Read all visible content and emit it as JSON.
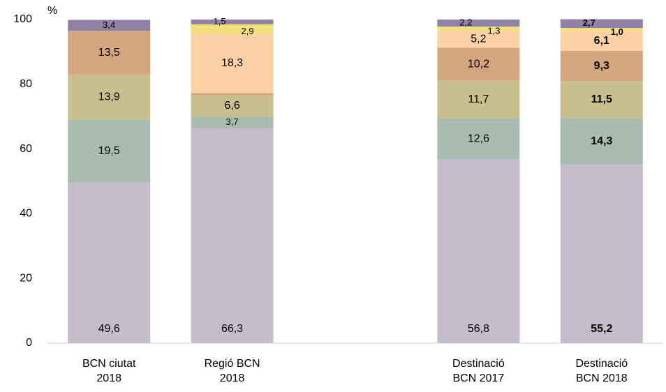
{
  "chart_data": {
    "type": "stacked_bar",
    "y_label": "%",
    "categories": [
      "BCN ciutat\n2018",
      "Regió BCN\n2018",
      null,
      "Destinació\nBCN 2017",
      "Destinació\nBCN 2018"
    ],
    "ylim": [
      0,
      100
    ],
    "yticks": [
      0,
      20,
      40,
      60,
      80,
      100
    ],
    "bold_categories": [
      false,
      false,
      false,
      false,
      true
    ],
    "series": [
      {
        "color": "#c6bdcc",
        "values": [
          49.6,
          66.3,
          null,
          56.8,
          55.2
        ],
        "value_labels": [
          "49,6",
          "66,3",
          null,
          "56,8",
          "55,2"
        ]
      },
      {
        "color": "#a8bcb2",
        "values": [
          19.5,
          3.7,
          null,
          12.6,
          14.3
        ],
        "value_labels": [
          "19,5",
          "3,7",
          null,
          "12,6",
          "14,3"
        ]
      },
      {
        "color": "#c9bf8c",
        "values": [
          13.9,
          6.6,
          null,
          11.7,
          11.5
        ],
        "value_labels": [
          "13,9",
          "6,6",
          null,
          "11,7",
          "11,5"
        ]
      },
      {
        "color": "#d5a67e",
        "values": [
          13.5,
          0.7,
          null,
          10.2,
          9.3
        ],
        "value_labels": [
          "13,5",
          null,
          null,
          "10,2",
          "9,3"
        ]
      },
      {
        "color": "#fdd1a6",
        "values": [
          null,
          18.3,
          null,
          5.2,
          6.1
        ],
        "value_labels": [
          null,
          "18,3",
          null,
          "5,2",
          "6,1"
        ]
      },
      {
        "color": "#f3e27c",
        "values": [
          null,
          2.9,
          null,
          1.3,
          1.0
        ],
        "value_labels": [
          null,
          "2,9",
          null,
          "1,3",
          "1,0"
        ]
      },
      {
        "color": "#8f82a6",
        "values": [
          3.4,
          1.5,
          null,
          2.2,
          2.7
        ],
        "value_labels": [
          "3,4",
          "1,5",
          null,
          "2,2",
          "2,7"
        ]
      }
    ]
  }
}
